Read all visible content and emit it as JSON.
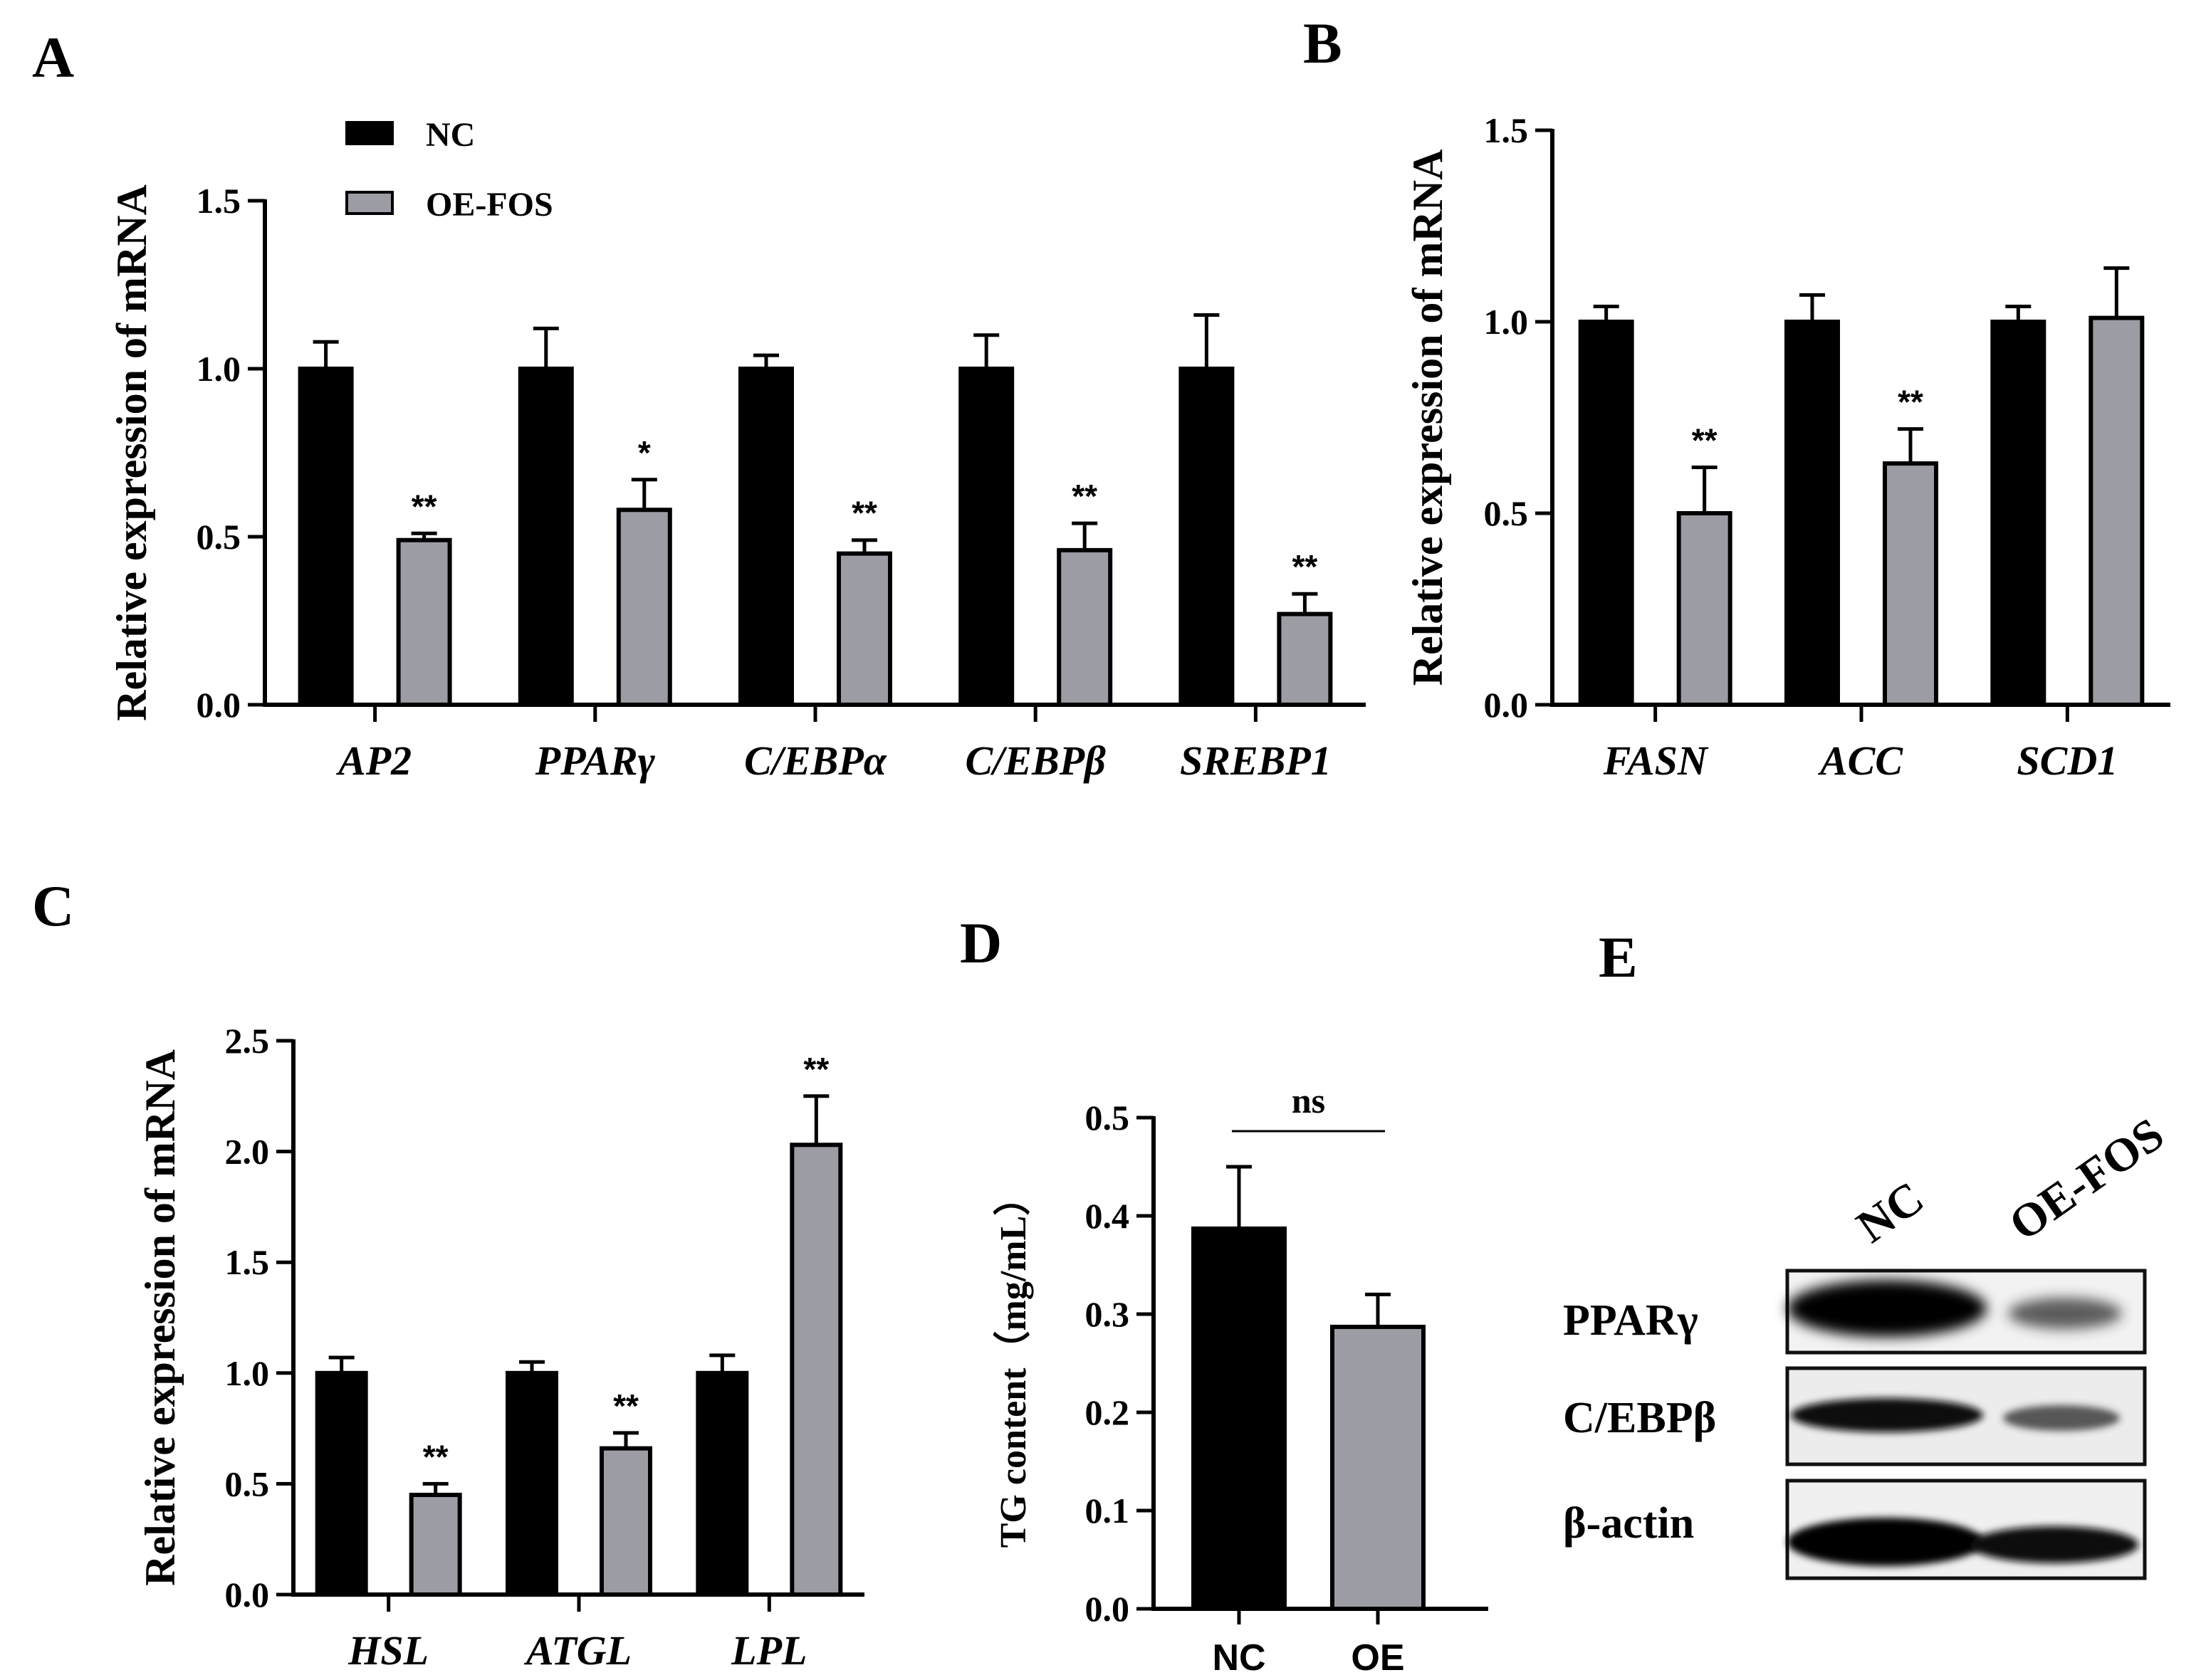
{
  "colors": {
    "nc": "#000000",
    "oe": "#9c9ca4",
    "axis": "#000000",
    "ns_line": "#000000"
  },
  "panels": {
    "A": {
      "letter": "A"
    },
    "B": {
      "letter": "B"
    },
    "C": {
      "letter": "C"
    },
    "D": {
      "letter": "D"
    },
    "E": {
      "letter": "E"
    }
  },
  "chart_data": [
    {
      "panel": "A",
      "type": "bar",
      "ylabel": "Relative expression of mRNA",
      "ylim": [
        0,
        1.5
      ],
      "yticks": [
        "0.0",
        "0.5",
        "1.0",
        "1.5"
      ],
      "categories": [
        "AP2",
        "PPARγ",
        "C/EBPα",
        "C/EBPβ",
        "SREBP1"
      ],
      "legend": {
        "placement": "top-left",
        "entries": [
          "NC",
          "OE-FOS"
        ]
      },
      "series": [
        {
          "name": "NC",
          "values": [
            1.0,
            1.0,
            1.0,
            1.0,
            1.0
          ],
          "errors": [
            0.08,
            0.12,
            0.04,
            0.1,
            0.16
          ]
        },
        {
          "name": "OE-FOS",
          "values": [
            0.49,
            0.58,
            0.45,
            0.46,
            0.27
          ],
          "errors": [
            0.02,
            0.09,
            0.04,
            0.08,
            0.06
          ]
        }
      ],
      "annotations": [
        "**",
        "*",
        "**",
        "**",
        "**"
      ]
    },
    {
      "panel": "B",
      "type": "bar",
      "ylabel": "Relative expression of mRNA",
      "ylim": [
        0,
        1.5
      ],
      "yticks": [
        "0.0",
        "0.5",
        "1.0",
        "1.5"
      ],
      "categories": [
        "FASN",
        "ACC",
        "SCD1"
      ],
      "series": [
        {
          "name": "NC",
          "values": [
            1.0,
            1.0,
            1.0
          ],
          "errors": [
            0.04,
            0.07,
            0.04
          ]
        },
        {
          "name": "OE-FOS",
          "values": [
            0.5,
            0.63,
            1.01
          ],
          "errors": [
            0.12,
            0.09,
            0.13
          ]
        }
      ],
      "annotations": [
        "**",
        "**",
        ""
      ]
    },
    {
      "panel": "C",
      "type": "bar",
      "ylabel": "Relative expression of mRNA",
      "ylim": [
        0,
        2.5
      ],
      "yticks": [
        "0.0",
        "0.5",
        "1.0",
        "1.5",
        "2.0",
        "2.5"
      ],
      "categories": [
        "HSL",
        "ATGL",
        "LPL"
      ],
      "series": [
        {
          "name": "NC",
          "values": [
            1.0,
            1.0,
            1.0
          ],
          "errors": [
            0.07,
            0.05,
            0.08
          ]
        },
        {
          "name": "OE-FOS",
          "values": [
            0.45,
            0.66,
            2.03
          ],
          "errors": [
            0.05,
            0.07,
            0.22
          ]
        }
      ],
      "annotations": [
        "**",
        "**",
        "**"
      ]
    },
    {
      "panel": "D",
      "type": "bar",
      "ylabel": "TG content（mg/mL）",
      "ylim": [
        0,
        0.5
      ],
      "yticks": [
        "0.0",
        "0.1",
        "0.2",
        "0.3",
        "0.4",
        "0.5"
      ],
      "categories": [
        "NC",
        "OE"
      ],
      "values": [
        0.387,
        0.287
      ],
      "errors": [
        0.063,
        0.033
      ],
      "annotation": "ns"
    }
  ],
  "western_blot": {
    "columns": [
      "NC",
      "OE-FOS"
    ],
    "rows": [
      {
        "label": "PPARγ",
        "band_intensity": [
          1.0,
          0.45
        ]
      },
      {
        "label": "C/EBPβ",
        "band_intensity": [
          0.85,
          0.5
        ]
      },
      {
        "label": "β-actin",
        "band_intensity": [
          1.0,
          1.0
        ]
      }
    ]
  }
}
